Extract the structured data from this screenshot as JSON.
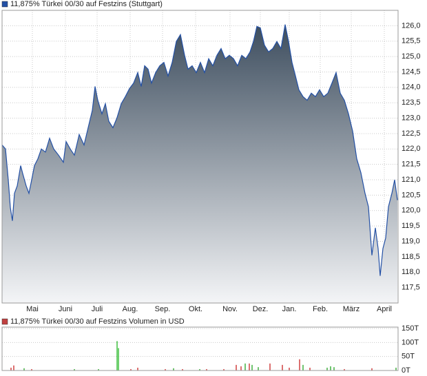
{
  "chart_data": [
    {
      "type": "area",
      "title": "11,875% Türkei 00/30 auf Festzins (Stuttgart)",
      "color": "#2350a5",
      "x": [
        0,
        5,
        9,
        12,
        15,
        18,
        22,
        27,
        30,
        35,
        39,
        43,
        47,
        52,
        57,
        63,
        69,
        75,
        82,
        89,
        93,
        99,
        105,
        112,
        119,
        125,
        131,
        135,
        139,
        145,
        150,
        155,
        161,
        167,
        173,
        179,
        185,
        191,
        197,
        202,
        207,
        212,
        217,
        223,
        229,
        235,
        241,
        247,
        253,
        259,
        265,
        270,
        276,
        282,
        288,
        294,
        300,
        306,
        312,
        318,
        324,
        330,
        336,
        342,
        348,
        354,
        360,
        365,
        370,
        375,
        381,
        387,
        393,
        399,
        405,
        411,
        416,
        421,
        426,
        431,
        437,
        443,
        449,
        455,
        461,
        467,
        473,
        479,
        485,
        491,
        497,
        503,
        509,
        515,
        521,
        527,
        532,
        537,
        542,
        546,
        549,
        553,
        557,
        561,
        566,
        570,
        574
      ],
      "values": [
        122.13,
        122.0,
        121.0,
        120.1,
        119.67,
        120.56,
        120.8,
        121.46,
        121.2,
        120.8,
        120.56,
        121.0,
        121.46,
        121.68,
        122.0,
        121.9,
        122.35,
        122.0,
        121.8,
        121.57,
        122.24,
        122.0,
        121.8,
        122.47,
        122.13,
        122.69,
        123.25,
        124.03,
        123.58,
        123.14,
        123.47,
        122.9,
        122.69,
        123.02,
        123.47,
        123.7,
        123.96,
        124.14,
        124.48,
        124.03,
        124.7,
        124.59,
        124.14,
        124.48,
        124.7,
        124.81,
        124.37,
        124.81,
        125.49,
        125.71,
        125.04,
        124.59,
        124.7,
        124.48,
        124.81,
        124.48,
        124.93,
        124.7,
        125.04,
        125.26,
        124.93,
        125.04,
        124.93,
        124.7,
        125.04,
        124.93,
        125.15,
        125.49,
        125.98,
        125.93,
        125.37,
        125.15,
        125.26,
        125.49,
        125.26,
        126.04,
        125.49,
        124.81,
        124.37,
        123.92,
        123.7,
        123.58,
        123.81,
        123.7,
        123.92,
        123.7,
        123.81,
        124.14,
        124.48,
        123.81,
        123.58,
        123.14,
        122.58,
        121.68,
        121.23,
        120.56,
        120.12,
        118.55,
        119.44,
        118.77,
        117.88,
        118.77,
        119.11,
        120.12,
        120.56,
        121.0,
        120.34
      ],
      "xlim": [
        0,
        575
      ],
      "ylim": [
        117.0,
        126.5
      ],
      "xticks": [
        {
          "value": 44,
          "label": "Mai"
        },
        {
          "value": 92,
          "label": "Juni"
        },
        {
          "value": 138,
          "label": "Juli"
        },
        {
          "value": 186,
          "label": "Aug."
        },
        {
          "value": 233,
          "label": "Sep."
        },
        {
          "value": 281,
          "label": "Okt."
        },
        {
          "value": 331,
          "label": "Nov."
        },
        {
          "value": 375,
          "label": "Dez."
        },
        {
          "value": 417,
          "label": "Jan."
        },
        {
          "value": 462,
          "label": "Feb."
        },
        {
          "value": 507,
          "label": "März"
        },
        {
          "value": 555,
          "label": "April"
        }
      ],
      "yticks": [
        {
          "value": 117.5,
          "label": "117,5"
        },
        {
          "value": 118.0,
          "label": "118,0"
        },
        {
          "value": 118.5,
          "label": "118,5"
        },
        {
          "value": 119.0,
          "label": "119,0"
        },
        {
          "value": 119.5,
          "label": "119,5"
        },
        {
          "value": 120.0,
          "label": "120,0"
        },
        {
          "value": 120.5,
          "label": "120,5"
        },
        {
          "value": 121.0,
          "label": "121,0"
        },
        {
          "value": 121.5,
          "label": "121,5"
        },
        {
          "value": 122.0,
          "label": "122,0"
        },
        {
          "value": 122.5,
          "label": "122,5"
        },
        {
          "value": 123.0,
          "label": "123,0"
        },
        {
          "value": 123.5,
          "label": "123,5"
        },
        {
          "value": 124.0,
          "label": "124,0"
        },
        {
          "value": 124.5,
          "label": "124,5"
        },
        {
          "value": 125.0,
          "label": "125,0"
        },
        {
          "value": 125.5,
          "label": "125,5"
        },
        {
          "value": 126.0,
          "label": "126,0"
        }
      ],
      "grid": true
    },
    {
      "type": "bar",
      "title": "11,875% Türkei 00/30 auf Festzins Volumen in USD",
      "color": "#c04040",
      "x": [
        13,
        17,
        32,
        43,
        105,
        140,
        167,
        169,
        187,
        197,
        237,
        249,
        262,
        287,
        297,
        322,
        340,
        347,
        353,
        359,
        363,
        372,
        389,
        407,
        417,
        432,
        437,
        447,
        472,
        477,
        482,
        497,
        537,
        572
      ],
      "values": [
        10,
        18,
        8,
        5,
        5,
        5,
        105,
        80,
        5,
        10,
        5,
        8,
        5,
        5,
        5,
        5,
        20,
        15,
        25,
        25,
        20,
        12,
        25,
        20,
        10,
        40,
        20,
        10,
        10,
        15,
        12,
        5,
        8,
        10
      ],
      "colors": [
        "#d04040",
        "#d04040",
        "#40b040",
        "#d04040",
        "#40b040",
        "#40b040",
        "#40c040",
        "#40c040",
        "#d04040",
        "#d04040",
        "#d04040",
        "#40b040",
        "#d04040",
        "#40b040",
        "#d04040",
        "#d04040",
        "#d04040",
        "#d04040",
        "#40b040",
        "#d04040",
        "#40b040",
        "#40b040",
        "#d04040",
        "#d04040",
        "#d04040",
        "#d04040",
        "#40b040",
        "#d04040",
        "#40b040",
        "#40b040",
        "#40b040",
        "#d04040",
        "#d04040",
        "#40b040"
      ],
      "xlim": [
        0,
        575
      ],
      "ylim": [
        0,
        155
      ],
      "yticks": [
        {
          "value": 0,
          "label": "0T"
        },
        {
          "value": 50,
          "label": "50T"
        },
        {
          "value": 100,
          "label": "100T"
        },
        {
          "value": 150,
          "label": "150T"
        }
      ],
      "grid": true
    }
  ]
}
